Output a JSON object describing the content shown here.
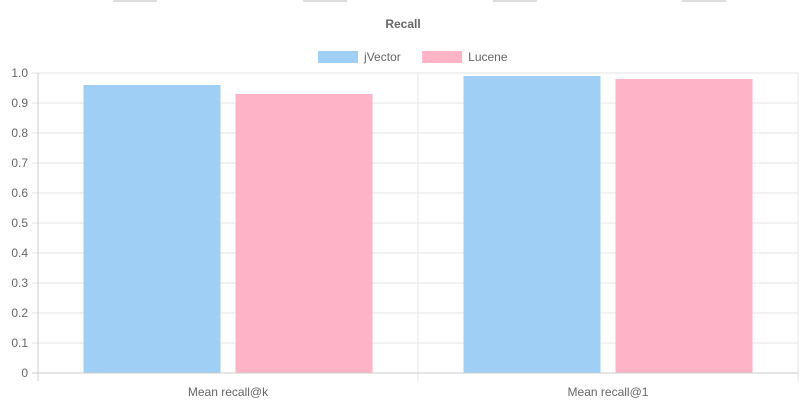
{
  "colors": {
    "jvector_fill": "#a0cff5",
    "lucene_fill": "#ffb3c6",
    "grid": "#e6e6e6",
    "axis": "#cccccc",
    "text": "#666666"
  },
  "chart_data": {
    "type": "bar",
    "title": "Recall",
    "categories": [
      "Mean recall@k",
      "Mean recall@1"
    ],
    "series": [
      {
        "name": "jVector",
        "color": "#a0cff5",
        "values": [
          0.96,
          0.99
        ]
      },
      {
        "name": "Lucene",
        "color": "#ffb3c6",
        "values": [
          0.93,
          0.98
        ]
      }
    ],
    "ylim": [
      0,
      1.0
    ],
    "yticks": [
      "0",
      "0.1",
      "0.2",
      "0.3",
      "0.4",
      "0.5",
      "0.6",
      "0.7",
      "0.8",
      "0.9",
      "1.0"
    ],
    "ytick_values": [
      0,
      0.1,
      0.2,
      0.3,
      0.4,
      0.5,
      0.6,
      0.7,
      0.8,
      0.9,
      1.0
    ],
    "grid": true,
    "legend_position": "top-center"
  }
}
